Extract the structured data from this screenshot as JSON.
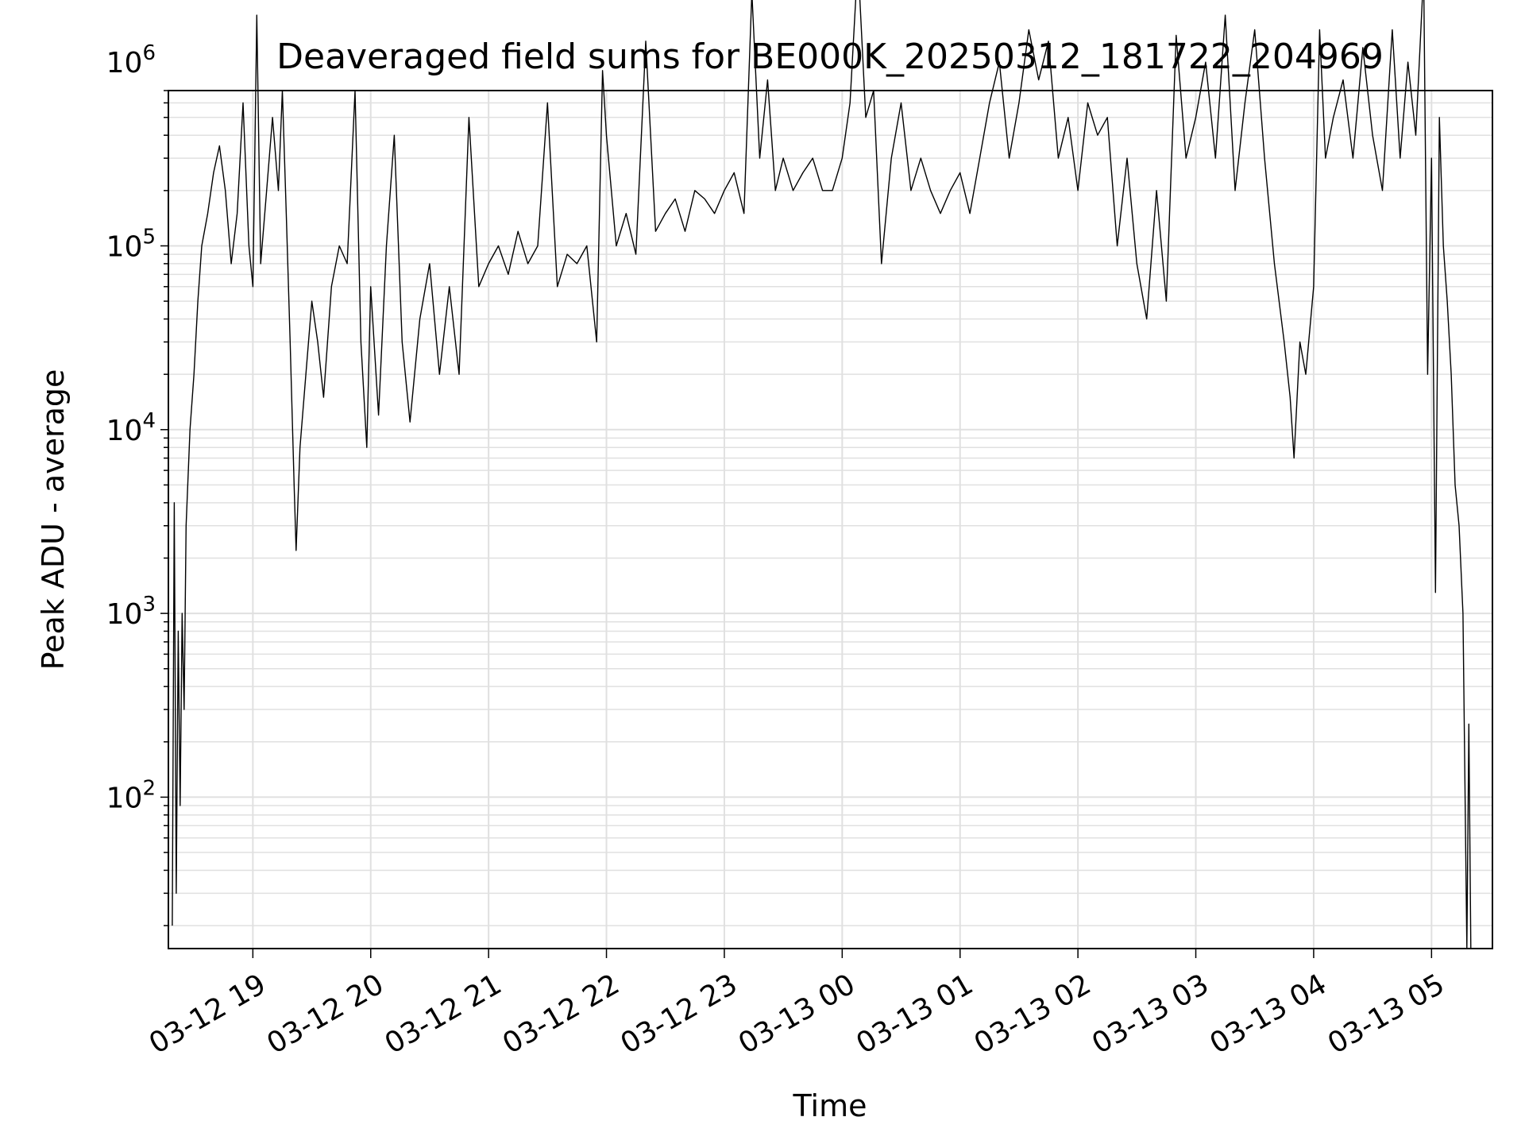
{
  "chart_data": {
    "type": "line",
    "title": "Deaveraged field sums for BE000K_20250312_181722_204969",
    "xlabel": "Time",
    "ylabel": "Peak ADU - average",
    "yscale": "log",
    "ylim": [
      15,
      700000
    ],
    "xlim": [
      "2025-03-12 18:17",
      "2025-03-13 05:31"
    ],
    "grid": "major and minor",
    "x_ticks": [
      {
        "t": "2025-03-12 19:00",
        "label": "03-12 19"
      },
      {
        "t": "2025-03-12 20:00",
        "label": "03-12 20"
      },
      {
        "t": "2025-03-12 21:00",
        "label": "03-12 21"
      },
      {
        "t": "2025-03-12 22:00",
        "label": "03-12 22"
      },
      {
        "t": "2025-03-12 23:00",
        "label": "03-12 23"
      },
      {
        "t": "2025-03-13 00:00",
        "label": "03-13 00"
      },
      {
        "t": "2025-03-13 01:00",
        "label": "03-13 01"
      },
      {
        "t": "2025-03-13 02:00",
        "label": "03-13 02"
      },
      {
        "t": "2025-03-13 03:00",
        "label": "03-13 03"
      },
      {
        "t": "2025-03-13 04:00",
        "label": "03-13 04"
      },
      {
        "t": "2025-03-13 05:00",
        "label": "03-13 05"
      }
    ],
    "y_ticks": [
      {
        "value": 100,
        "base": "10",
        "exp": "2"
      },
      {
        "value": 1000,
        "base": "10",
        "exp": "3"
      },
      {
        "value": 10000,
        "base": "10",
        "exp": "4"
      },
      {
        "value": 100000,
        "base": "10",
        "exp": "5"
      },
      {
        "value": 1000000,
        "base": "10",
        "exp": "6"
      }
    ],
    "colors": {
      "line": "#000000",
      "grid": "#e0e0e0",
      "axes": "#000000"
    },
    "series": [
      {
        "points": [
          [
            "2025-03-12 18:19",
            20
          ],
          [
            "2025-03-12 18:20",
            4000
          ],
          [
            "2025-03-12 18:21",
            30
          ],
          [
            "2025-03-12 18:22",
            800
          ],
          [
            "2025-03-12 18:23",
            90
          ],
          [
            "2025-03-12 18:24",
            1000
          ],
          [
            "2025-03-12 18:25",
            300
          ],
          [
            "2025-03-12 18:26",
            3000
          ],
          [
            "2025-03-12 18:28",
            10000
          ],
          [
            "2025-03-12 18:30",
            20000
          ],
          [
            "2025-03-12 18:32",
            50000
          ],
          [
            "2025-03-12 18:34",
            100000
          ],
          [
            "2025-03-12 18:37",
            150000
          ],
          [
            "2025-03-12 18:40",
            250000
          ],
          [
            "2025-03-12 18:43",
            350000
          ],
          [
            "2025-03-12 18:46",
            200000
          ],
          [
            "2025-03-12 18:49",
            80000
          ],
          [
            "2025-03-12 18:52",
            150000
          ],
          [
            "2025-03-12 18:55",
            600000
          ],
          [
            "2025-03-12 18:58",
            100000
          ],
          [
            "2025-03-12 19:00",
            60000
          ],
          [
            "2025-03-12 19:02",
            1800000
          ],
          [
            "2025-03-12 19:04",
            80000
          ],
          [
            "2025-03-12 19:07",
            200000
          ],
          [
            "2025-03-12 19:10",
            500000
          ],
          [
            "2025-03-12 19:13",
            200000
          ],
          [
            "2025-03-12 19:15",
            700000
          ],
          [
            "2025-03-12 19:17",
            150000
          ],
          [
            "2025-03-12 19:19",
            30000
          ],
          [
            "2025-03-12 19:21",
            5000
          ],
          [
            "2025-03-12 19:22",
            2200
          ],
          [
            "2025-03-12 19:24",
            8000
          ],
          [
            "2025-03-12 19:27",
            20000
          ],
          [
            "2025-03-12 19:30",
            50000
          ],
          [
            "2025-03-12 19:33",
            30000
          ],
          [
            "2025-03-12 19:36",
            15000
          ],
          [
            "2025-03-12 19:40",
            60000
          ],
          [
            "2025-03-12 19:44",
            100000
          ],
          [
            "2025-03-12 19:48",
            80000
          ],
          [
            "2025-03-12 19:52",
            700000
          ],
          [
            "2025-03-12 19:55",
            30000
          ],
          [
            "2025-03-12 19:58",
            8000
          ],
          [
            "2025-03-12 20:00",
            60000
          ],
          [
            "2025-03-12 20:04",
            12000
          ],
          [
            "2025-03-12 20:08",
            100000
          ],
          [
            "2025-03-12 20:12",
            400000
          ],
          [
            "2025-03-12 20:16",
            30000
          ],
          [
            "2025-03-12 20:20",
            11000
          ],
          [
            "2025-03-12 20:25",
            40000
          ],
          [
            "2025-03-12 20:30",
            80000
          ],
          [
            "2025-03-12 20:35",
            20000
          ],
          [
            "2025-03-12 20:40",
            60000
          ],
          [
            "2025-03-12 20:45",
            20000
          ],
          [
            "2025-03-12 20:50",
            500000
          ],
          [
            "2025-03-12 20:55",
            60000
          ],
          [
            "2025-03-12 21:00",
            80000
          ],
          [
            "2025-03-12 21:05",
            100000
          ],
          [
            "2025-03-12 21:10",
            70000
          ],
          [
            "2025-03-12 21:15",
            120000
          ],
          [
            "2025-03-12 21:20",
            80000
          ],
          [
            "2025-03-12 21:25",
            100000
          ],
          [
            "2025-03-12 21:30",
            600000
          ],
          [
            "2025-03-12 21:35",
            60000
          ],
          [
            "2025-03-12 21:40",
            90000
          ],
          [
            "2025-03-12 21:45",
            80000
          ],
          [
            "2025-03-12 21:50",
            100000
          ],
          [
            "2025-03-12 21:55",
            30000
          ],
          [
            "2025-03-12 21:58",
            900000
          ],
          [
            "2025-03-12 22:00",
            400000
          ],
          [
            "2025-03-12 22:05",
            100000
          ],
          [
            "2025-03-12 22:10",
            150000
          ],
          [
            "2025-03-12 22:15",
            90000
          ],
          [
            "2025-03-12 22:20",
            1300000
          ],
          [
            "2025-03-12 22:25",
            120000
          ],
          [
            "2025-03-12 22:30",
            150000
          ],
          [
            "2025-03-12 22:35",
            180000
          ],
          [
            "2025-03-12 22:40",
            120000
          ],
          [
            "2025-03-12 22:45",
            200000
          ],
          [
            "2025-03-12 22:50",
            180000
          ],
          [
            "2025-03-12 22:55",
            150000
          ],
          [
            "2025-03-12 23:00",
            200000
          ],
          [
            "2025-03-12 23:05",
            250000
          ],
          [
            "2025-03-12 23:10",
            150000
          ],
          [
            "2025-03-12 23:14",
            2400000
          ],
          [
            "2025-03-12 23:18",
            300000
          ],
          [
            "2025-03-12 23:22",
            800000
          ],
          [
            "2025-03-12 23:26",
            200000
          ],
          [
            "2025-03-12 23:30",
            300000
          ],
          [
            "2025-03-12 23:35",
            200000
          ],
          [
            "2025-03-12 23:40",
            250000
          ],
          [
            "2025-03-12 23:45",
            300000
          ],
          [
            "2025-03-12 23:50",
            200000
          ],
          [
            "2025-03-12 23:55",
            200000
          ],
          [
            "2025-03-13 00:00",
            300000
          ],
          [
            "2025-03-13 00:04",
            600000
          ],
          [
            "2025-03-13 00:08",
            3600000
          ],
          [
            "2025-03-13 00:12",
            500000
          ],
          [
            "2025-03-13 00:16",
            700000
          ],
          [
            "2025-03-13 00:20",
            80000
          ],
          [
            "2025-03-13 00:25",
            300000
          ],
          [
            "2025-03-13 00:30",
            600000
          ],
          [
            "2025-03-13 00:35",
            200000
          ],
          [
            "2025-03-13 00:40",
            300000
          ],
          [
            "2025-03-13 00:45",
            200000
          ],
          [
            "2025-03-13 00:50",
            150000
          ],
          [
            "2025-03-13 00:55",
            200000
          ],
          [
            "2025-03-13 01:00",
            250000
          ],
          [
            "2025-03-13 01:05",
            150000
          ],
          [
            "2025-03-13 01:10",
            300000
          ],
          [
            "2025-03-13 01:15",
            600000
          ],
          [
            "2025-03-13 01:20",
            1000000
          ],
          [
            "2025-03-13 01:25",
            300000
          ],
          [
            "2025-03-13 01:30",
            600000
          ],
          [
            "2025-03-13 01:35",
            1500000
          ],
          [
            "2025-03-13 01:40",
            800000
          ],
          [
            "2025-03-13 01:45",
            1300000
          ],
          [
            "2025-03-13 01:50",
            300000
          ],
          [
            "2025-03-13 01:55",
            500000
          ],
          [
            "2025-03-13 02:00",
            200000
          ],
          [
            "2025-03-13 02:05",
            600000
          ],
          [
            "2025-03-13 02:10",
            400000
          ],
          [
            "2025-03-13 02:15",
            500000
          ],
          [
            "2025-03-13 02:20",
            100000
          ],
          [
            "2025-03-13 02:25",
            300000
          ],
          [
            "2025-03-13 02:30",
            80000
          ],
          [
            "2025-03-13 02:35",
            40000
          ],
          [
            "2025-03-13 02:40",
            200000
          ],
          [
            "2025-03-13 02:45",
            50000
          ],
          [
            "2025-03-13 02:50",
            1400000
          ],
          [
            "2025-03-13 02:55",
            300000
          ],
          [
            "2025-03-13 03:00",
            500000
          ],
          [
            "2025-03-13 03:05",
            1000000
          ],
          [
            "2025-03-13 03:10",
            300000
          ],
          [
            "2025-03-13 03:15",
            1800000
          ],
          [
            "2025-03-13 03:20",
            200000
          ],
          [
            "2025-03-13 03:25",
            600000
          ],
          [
            "2025-03-13 03:30",
            1500000
          ],
          [
            "2025-03-13 03:35",
            300000
          ],
          [
            "2025-03-13 03:40",
            80000
          ],
          [
            "2025-03-13 03:45",
            30000
          ],
          [
            "2025-03-13 03:48",
            15000
          ],
          [
            "2025-03-13 03:50",
            7000
          ],
          [
            "2025-03-13 03:53",
            30000
          ],
          [
            "2025-03-13 03:56",
            20000
          ],
          [
            "2025-03-13 04:00",
            60000
          ],
          [
            "2025-03-13 04:03",
            1500000
          ],
          [
            "2025-03-13 04:06",
            300000
          ],
          [
            "2025-03-13 04:10",
            500000
          ],
          [
            "2025-03-13 04:15",
            800000
          ],
          [
            "2025-03-13 04:20",
            300000
          ],
          [
            "2025-03-13 04:25",
            1200000
          ],
          [
            "2025-03-13 04:30",
            400000
          ],
          [
            "2025-03-13 04:35",
            200000
          ],
          [
            "2025-03-13 04:40",
            1500000
          ],
          [
            "2025-03-13 04:44",
            300000
          ],
          [
            "2025-03-13 04:48",
            1000000
          ],
          [
            "2025-03-13 04:52",
            400000
          ],
          [
            "2025-03-13 04:56",
            3100000
          ],
          [
            "2025-03-13 04:58",
            20000
          ],
          [
            "2025-03-13 05:00",
            300000
          ],
          [
            "2025-03-13 05:02",
            1300
          ],
          [
            "2025-03-13 05:04",
            500000
          ],
          [
            "2025-03-13 05:06",
            100000
          ],
          [
            "2025-03-13 05:08",
            50000
          ],
          [
            "2025-03-13 05:10",
            20000
          ],
          [
            "2025-03-13 05:12",
            5000
          ],
          [
            "2025-03-13 05:14",
            3000
          ],
          [
            "2025-03-13 05:16",
            1000
          ],
          [
            "2025-03-13 05:18",
            15
          ],
          [
            "2025-03-13 05:19",
            250
          ],
          [
            "2025-03-13 05:20",
            15
          ]
        ]
      }
    ]
  }
}
